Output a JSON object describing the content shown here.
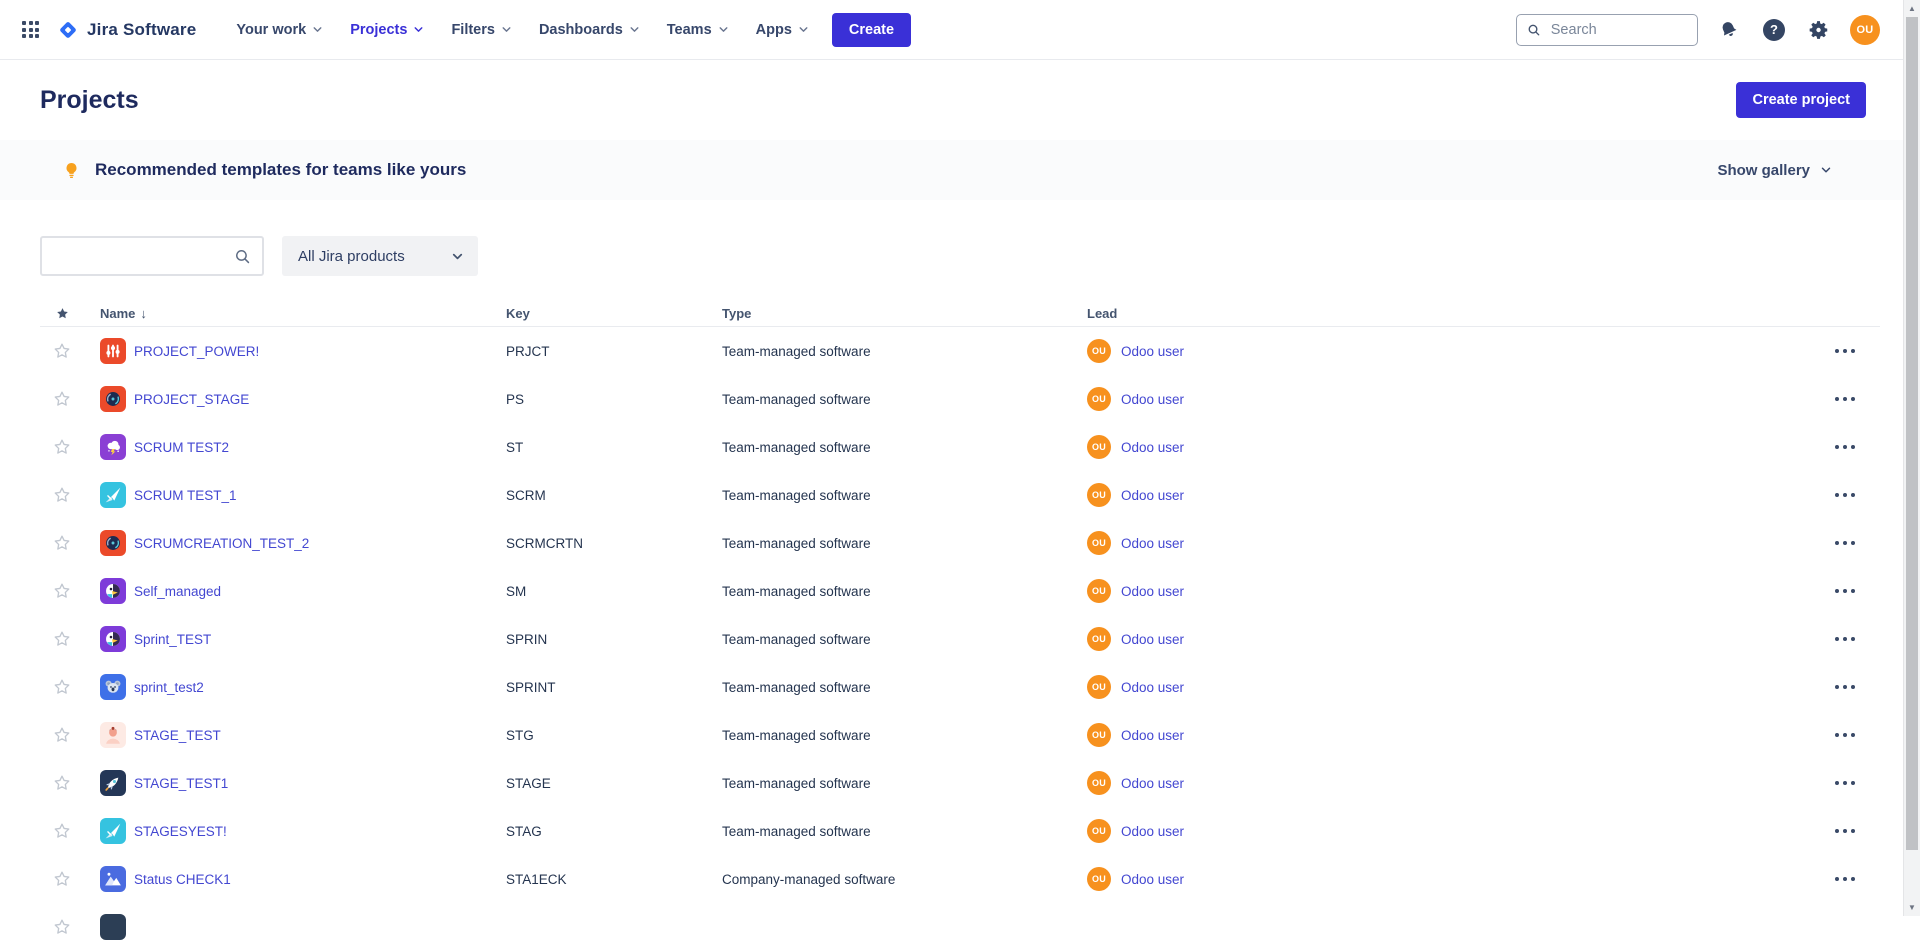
{
  "topnav": {
    "product_name": "Jira Software",
    "items": [
      {
        "label": "Your work",
        "active": false
      },
      {
        "label": "Projects",
        "active": true
      },
      {
        "label": "Filters",
        "active": false
      },
      {
        "label": "Dashboards",
        "active": false
      },
      {
        "label": "Teams",
        "active": false
      },
      {
        "label": "Apps",
        "active": false
      }
    ],
    "create_button": "Create",
    "search_placeholder": "Search",
    "help_glyph": "?",
    "user_initials": "OU"
  },
  "page": {
    "title": "Projects",
    "create_project_button": "Create project"
  },
  "banner": {
    "icon": "lightbulb-icon",
    "title": "Recommended templates for teams like yours",
    "action": "Show gallery"
  },
  "filters": {
    "search_value": "",
    "product_filter_value": "All Jira products"
  },
  "table": {
    "columns": {
      "name": "Name",
      "key": "Key",
      "type": "Type",
      "lead": "Lead"
    },
    "sort_indicator": "↓",
    "rows": [
      {
        "name": "PROJECT_POWER!",
        "key": "PRJCT",
        "type": "Team-managed software",
        "lead": "Odoo user",
        "lead_initials": "OU",
        "icon": "sliders-icon",
        "icon_bg": "#eb4a2a"
      },
      {
        "name": "PROJECT_STAGE",
        "key": "PS",
        "type": "Team-managed software",
        "lead": "Odoo user",
        "lead_initials": "OU",
        "icon": "disc-icon",
        "icon_bg": "#eb4a2a"
      },
      {
        "name": "SCRUM TEST2",
        "key": "ST",
        "type": "Team-managed software",
        "lead": "Odoo user",
        "lead_initials": "OU",
        "icon": "storm-cloud-icon",
        "icon_bg": "#8a3fd4"
      },
      {
        "name": "SCRUM TEST_1",
        "key": "SCRM",
        "type": "Team-managed software",
        "lead": "Odoo user",
        "lead_initials": "OU",
        "icon": "jet-icon",
        "icon_bg": "#35c3e0"
      },
      {
        "name": "SCRUMCREATION_TEST_2",
        "key": "SCRMCRTN",
        "type": "Team-managed software",
        "lead": "Odoo user",
        "lead_initials": "OU",
        "icon": "disc-icon",
        "icon_bg": "#eb4a2a"
      },
      {
        "name": "Self_managed",
        "key": "SM",
        "type": "Team-managed software",
        "lead": "Odoo user",
        "lead_initials": "OU",
        "icon": "parrot-icon",
        "icon_bg": "#7e3bd9"
      },
      {
        "name": "Sprint_TEST",
        "key": "SPRIN",
        "type": "Team-managed software",
        "lead": "Odoo user",
        "lead_initials": "OU",
        "icon": "parrot-icon",
        "icon_bg": "#7e3bd9"
      },
      {
        "name": "sprint_test2",
        "key": "SPRINT",
        "type": "Team-managed software",
        "lead": "Odoo user",
        "lead_initials": "OU",
        "icon": "koala-icon",
        "icon_bg": "#3e70e8"
      },
      {
        "name": "STAGE_TEST",
        "key": "STG",
        "type": "Team-managed software",
        "lead": "Odoo user",
        "lead_initials": "OU",
        "icon": "person-icon",
        "icon_bg": "#fdeae4"
      },
      {
        "name": "STAGE_TEST1",
        "key": "STAGE",
        "type": "Team-managed software",
        "lead": "Odoo user",
        "lead_initials": "OU",
        "icon": "rocket-icon",
        "icon_bg": "#243757"
      },
      {
        "name": "STAGESYEST!",
        "key": "STAG",
        "type": "Team-managed software",
        "lead": "Odoo user",
        "lead_initials": "OU",
        "icon": "jet-icon",
        "icon_bg": "#35c3e0"
      },
      {
        "name": "Status CHECK1",
        "key": "STA1ECK",
        "type": "Company-managed software",
        "lead": "Odoo user",
        "lead_initials": "OU",
        "icon": "mountains-icon",
        "icon_bg": "#4a6be0"
      }
    ],
    "partial_row": {
      "icon_bg": "#2c3e55"
    }
  },
  "colors": {
    "accent": "#3a30d7",
    "link": "#4347d1",
    "avatar": "#f7911e",
    "banner_icon": "#f7a11e"
  }
}
